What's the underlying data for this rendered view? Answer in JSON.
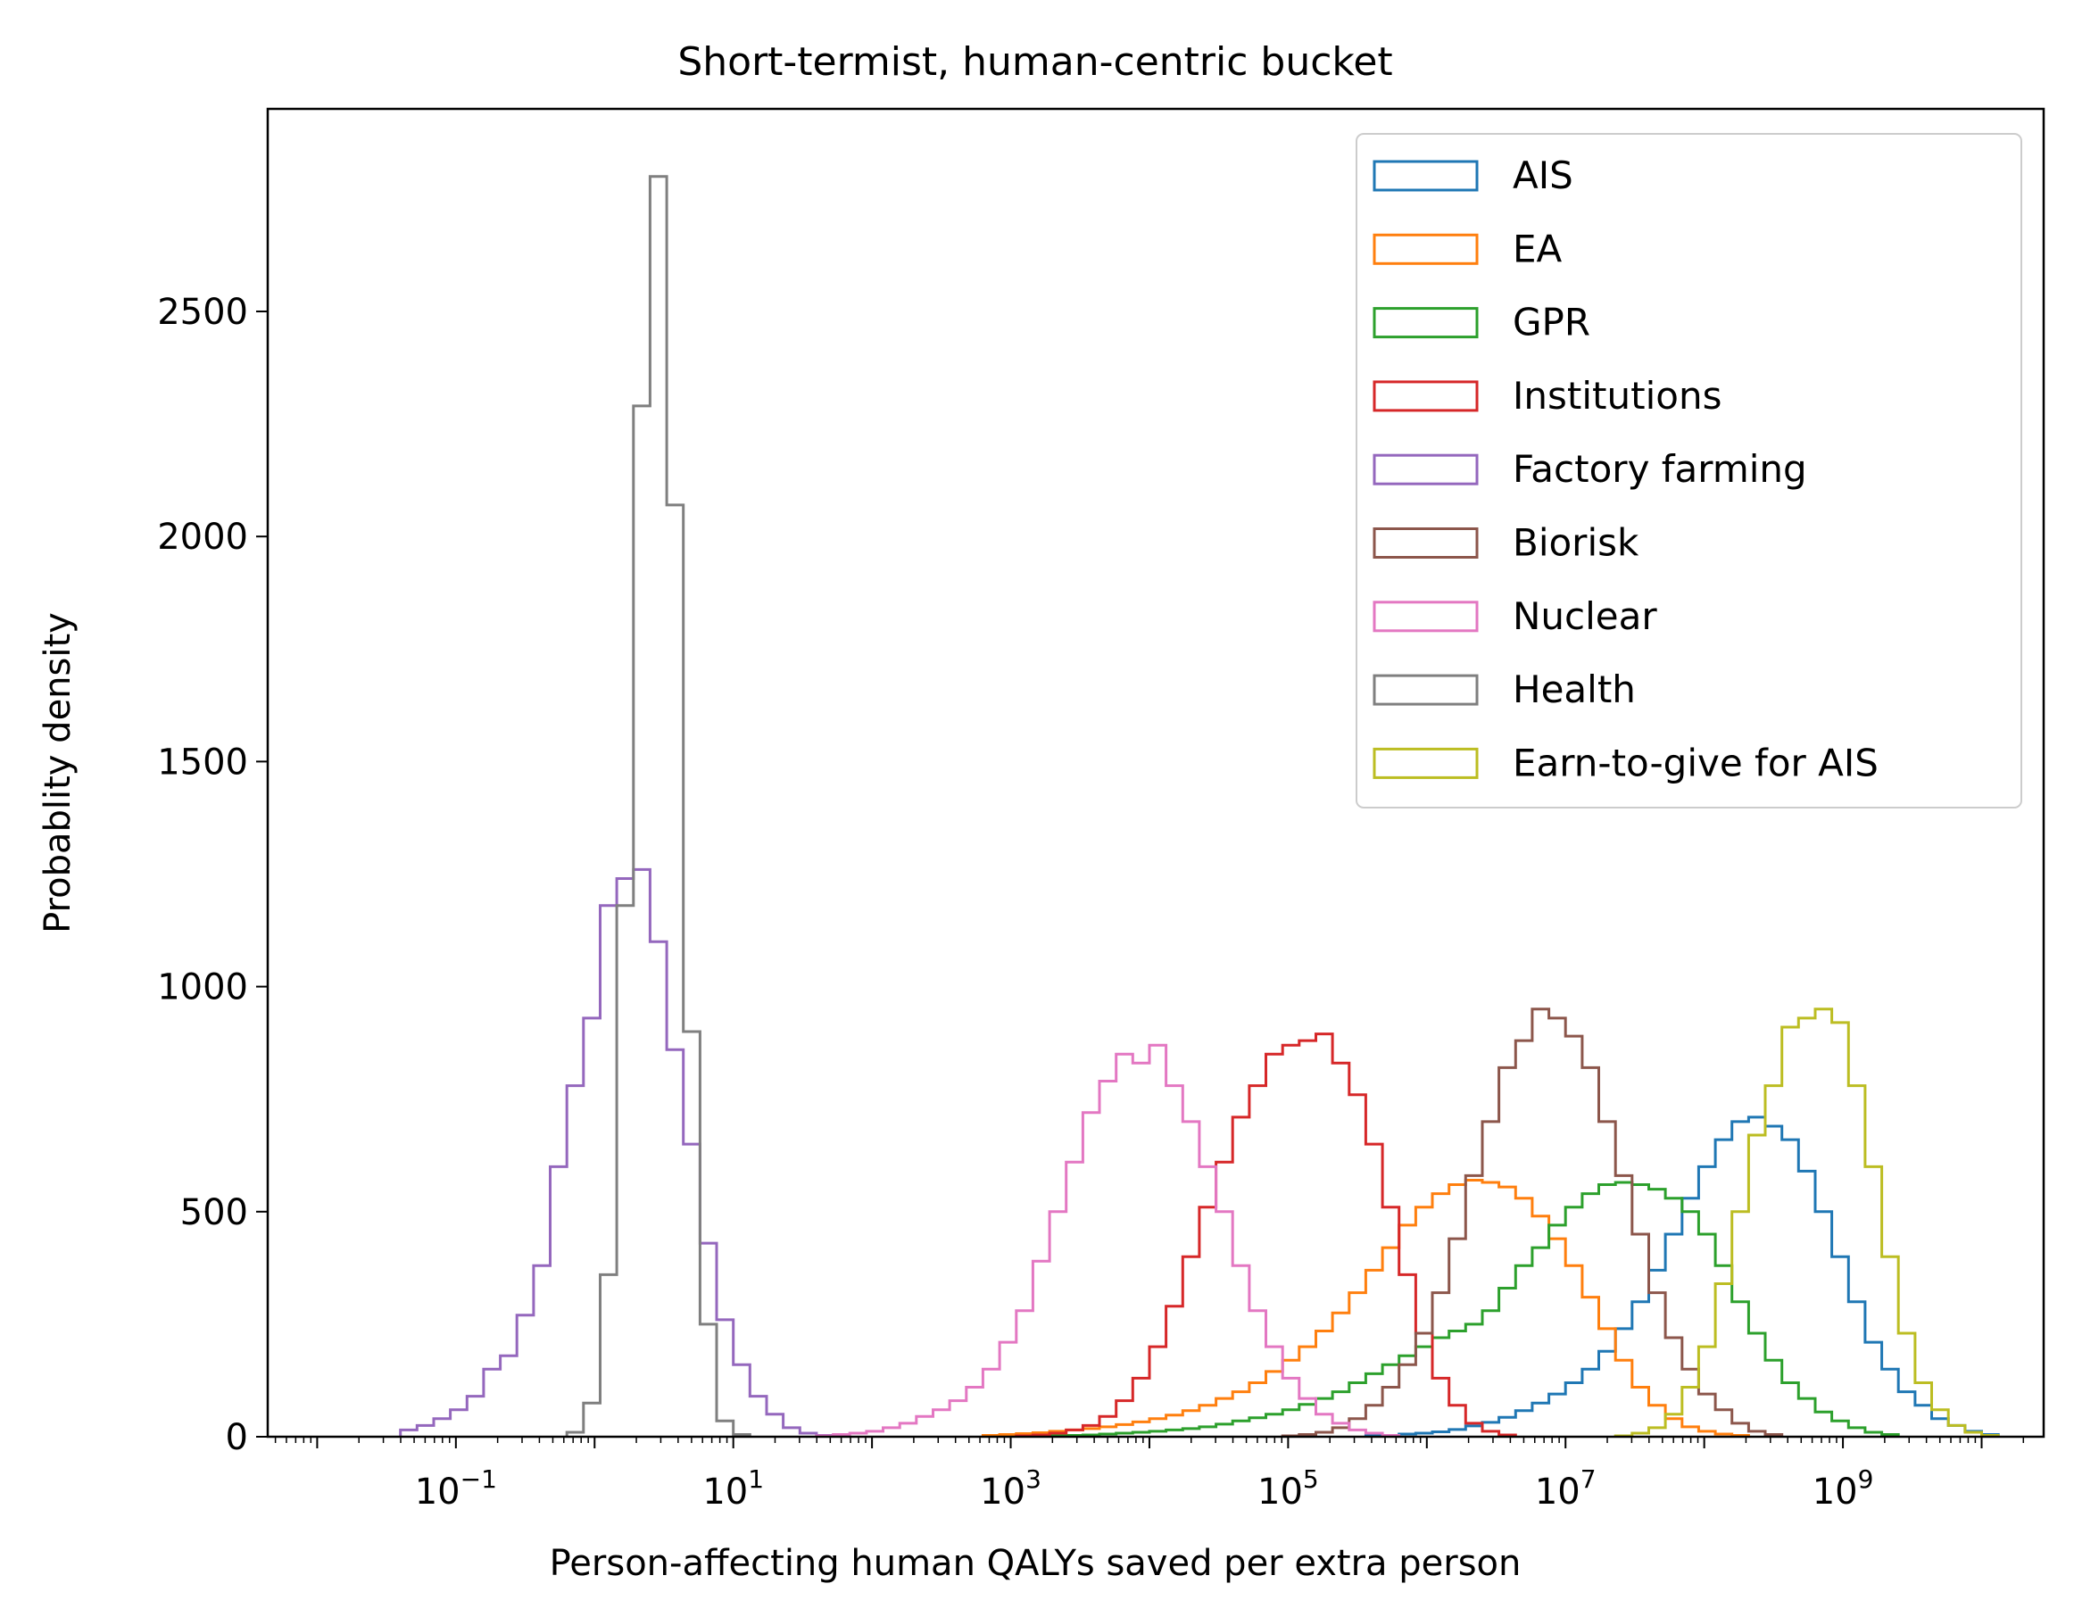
{
  "chart_data": {
    "type": "histogram",
    "histtype": "step",
    "title": "Short-termist, human-centric bucket",
    "xlabel": "Person-affecting human QALYs saved per extra person",
    "ylabel": "Probablity density",
    "xscale": "log",
    "xlim": [
      0.0044,
      28000000000
    ],
    "ylim": [
      0,
      2950
    ],
    "xticks": [
      {
        "value": 0.1,
        "base": "10",
        "exp": "−1"
      },
      {
        "value": 10,
        "base": "10",
        "exp": "1"
      },
      {
        "value": 1000,
        "base": "10",
        "exp": "3"
      },
      {
        "value": 100000,
        "base": "10",
        "exp": "5"
      },
      {
        "value": 10000000,
        "base": "10",
        "exp": "7"
      },
      {
        "value": 1000000000,
        "base": "10",
        "exp": "9"
      }
    ],
    "yticks": [
      0,
      500,
      1000,
      1500,
      2000,
      2500
    ],
    "legend_position": "top-right",
    "grid": false,
    "bin_edges": {
      "log10_start": -2.0,
      "log10_step": 0.12,
      "count": 101
    },
    "series": [
      {
        "name": "AIS",
        "color": "#1f77b4",
        "values": [
          0,
          0,
          0,
          0,
          0,
          0,
          0,
          0,
          0,
          0,
          0,
          0,
          0,
          0,
          0,
          0,
          0,
          0,
          0,
          0,
          0,
          0,
          0,
          0,
          0,
          0,
          0,
          0,
          0,
          0,
          0,
          0,
          0,
          0,
          0,
          0,
          0,
          0,
          0,
          0,
          0,
          0,
          0,
          0,
          0,
          0,
          0,
          0,
          0,
          0,
          0,
          0,
          0,
          0,
          0,
          0,
          0,
          0,
          0,
          0,
          0,
          0,
          0,
          2,
          3,
          6,
          8,
          11,
          16,
          24,
          32,
          43,
          58,
          75,
          95,
          120,
          150,
          190,
          240,
          300,
          370,
          450,
          530,
          600,
          660,
          700,
          710,
          690,
          660,
          590,
          500,
          400,
          300,
          210,
          150,
          100,
          70,
          40,
          25,
          12,
          5
        ]
      },
      {
        "name": "EA",
        "color": "#ff7f0e",
        "values": [
          0,
          0,
          0,
          0,
          0,
          0,
          0,
          0,
          0,
          0,
          0,
          0,
          0,
          0,
          0,
          0,
          0,
          0,
          0,
          0,
          0,
          0,
          0,
          0,
          0,
          0,
          0,
          0,
          0,
          0,
          0,
          0,
          0,
          0,
          0,
          0,
          0,
          0,
          0,
          0,
          3,
          5,
          7,
          9,
          12,
          15,
          18,
          22,
          27,
          33,
          40,
          48,
          58,
          70,
          85,
          100,
          120,
          145,
          170,
          200,
          235,
          275,
          320,
          370,
          420,
          470,
          510,
          540,
          560,
          570,
          565,
          555,
          530,
          490,
          440,
          380,
          310,
          240,
          170,
          110,
          70,
          40,
          22,
          12,
          6,
          3,
          0,
          0,
          0,
          0,
          0,
          0,
          0,
          0,
          0,
          0,
          0,
          0,
          0,
          0,
          0
        ]
      },
      {
        "name": "GPR",
        "color": "#2ca02c",
        "values": [
          0,
          0,
          0,
          0,
          0,
          0,
          0,
          0,
          0,
          0,
          0,
          0,
          0,
          0,
          0,
          0,
          0,
          0,
          0,
          0,
          0,
          0,
          0,
          0,
          0,
          0,
          0,
          0,
          0,
          0,
          0,
          0,
          0,
          0,
          0,
          0,
          0,
          0,
          0,
          0,
          0,
          0,
          0,
          0,
          2,
          3,
          4,
          6,
          8,
          10,
          12,
          15,
          18,
          22,
          28,
          35,
          42,
          50,
          60,
          72,
          85,
          100,
          120,
          140,
          160,
          180,
          200,
          220,
          235,
          250,
          280,
          330,
          380,
          420,
          470,
          510,
          540,
          560,
          565,
          560,
          550,
          530,
          500,
          450,
          380,
          300,
          230,
          170,
          120,
          85,
          55,
          35,
          20,
          10,
          5,
          0,
          0,
          0,
          0,
          0,
          0
        ]
      },
      {
        "name": "Institutions",
        "color": "#d62728",
        "values": [
          0,
          0,
          0,
          0,
          0,
          0,
          0,
          0,
          0,
          0,
          0,
          0,
          0,
          0,
          0,
          0,
          0,
          0,
          0,
          0,
          0,
          0,
          0,
          0,
          0,
          0,
          0,
          0,
          0,
          0,
          0,
          0,
          0,
          0,
          0,
          0,
          0,
          0,
          0,
          0,
          0,
          0,
          2,
          4,
          8,
          15,
          25,
          45,
          80,
          130,
          200,
          290,
          400,
          510,
          610,
          710,
          780,
          850,
          870,
          880,
          895,
          830,
          760,
          650,
          510,
          360,
          230,
          130,
          70,
          30,
          12,
          4,
          0,
          0,
          0,
          0,
          0,
          0,
          0,
          0,
          0,
          0,
          0,
          0,
          0,
          0,
          0,
          0,
          0,
          0,
          0,
          0,
          0,
          0,
          0,
          0,
          0,
          0,
          0,
          0,
          0
        ]
      },
      {
        "name": "Factory farming",
        "color": "#9467bd",
        "values": [
          0,
          0,
          0,
          0,
          0,
          15,
          25,
          40,
          60,
          90,
          150,
          180,
          270,
          380,
          600,
          780,
          930,
          1180,
          1240,
          1260,
          1100,
          860,
          650,
          430,
          260,
          160,
          90,
          50,
          20,
          8,
          3,
          0,
          0,
          0,
          0,
          0,
          0,
          0,
          0,
          0,
          0,
          0,
          0,
          0,
          0,
          0,
          0,
          0,
          0,
          0,
          0,
          0,
          0,
          0,
          0,
          0,
          0,
          0,
          0,
          0,
          0,
          0,
          0,
          0,
          0,
          0,
          0,
          0,
          0,
          0,
          0,
          0,
          0,
          0,
          0,
          0,
          0,
          0,
          0,
          0,
          0,
          0,
          0,
          0,
          0,
          0,
          0,
          0,
          0,
          0,
          0,
          0,
          0,
          0,
          0,
          0,
          0,
          0,
          0,
          0,
          0
        ]
      },
      {
        "name": "Biorisk",
        "color": "#8c564b",
        "values": [
          0,
          0,
          0,
          0,
          0,
          0,
          0,
          0,
          0,
          0,
          0,
          0,
          0,
          0,
          0,
          0,
          0,
          0,
          0,
          0,
          0,
          0,
          0,
          0,
          0,
          0,
          0,
          0,
          0,
          0,
          0,
          0,
          0,
          0,
          0,
          0,
          0,
          0,
          0,
          0,
          0,
          0,
          0,
          0,
          0,
          0,
          0,
          0,
          0,
          0,
          0,
          0,
          0,
          0,
          0,
          0,
          0,
          0,
          2,
          5,
          10,
          20,
          40,
          70,
          110,
          160,
          230,
          320,
          440,
          580,
          700,
          820,
          880,
          950,
          930,
          890,
          820,
          700,
          580,
          450,
          320,
          220,
          150,
          95,
          60,
          30,
          12,
          5,
          0,
          0,
          0,
          0,
          0,
          0,
          0,
          0,
          0,
          0,
          0,
          0,
          0
        ]
      },
      {
        "name": "Nuclear",
        "color": "#e377c2",
        "values": [
          0,
          0,
          0,
          0,
          0,
          0,
          0,
          0,
          0,
          0,
          0,
          0,
          0,
          0,
          0,
          0,
          0,
          0,
          0,
          0,
          0,
          0,
          0,
          0,
          0,
          0,
          0,
          0,
          0,
          0,
          2,
          5,
          8,
          12,
          20,
          30,
          45,
          60,
          80,
          110,
          150,
          210,
          280,
          390,
          500,
          610,
          720,
          790,
          850,
          830,
          870,
          780,
          700,
          600,
          500,
          380,
          280,
          200,
          130,
          85,
          50,
          30,
          15,
          8,
          3,
          0,
          0,
          0,
          0,
          0,
          0,
          0,
          0,
          0,
          0,
          0,
          0,
          0,
          0,
          0,
          0,
          0,
          0,
          0,
          0,
          0,
          0,
          0,
          0,
          0,
          0,
          0,
          0,
          0,
          0,
          0,
          0,
          0,
          0,
          0,
          0
        ]
      },
      {
        "name": "Health",
        "color": "#7f7f7f",
        "values": [
          0,
          0,
          0,
          0,
          0,
          0,
          0,
          0,
          0,
          0,
          0,
          0,
          0,
          0,
          0,
          10,
          75,
          360,
          1180,
          2290,
          2800,
          2070,
          900,
          250,
          35,
          5,
          0,
          0,
          0,
          0,
          0,
          0,
          0,
          0,
          0,
          0,
          0,
          0,
          0,
          0,
          0,
          0,
          0,
          0,
          0,
          0,
          0,
          0,
          0,
          0,
          0,
          0,
          0,
          0,
          0,
          0,
          0,
          0,
          0,
          0,
          0,
          0,
          0,
          0,
          0,
          0,
          0,
          0,
          0,
          0,
          0,
          0,
          0,
          0,
          0,
          0,
          0,
          0,
          0,
          0,
          0,
          0,
          0,
          0,
          0,
          0,
          0,
          0,
          0,
          0,
          0,
          0,
          0,
          0,
          0,
          0,
          0,
          0,
          0,
          0,
          0
        ]
      },
      {
        "name": "Earn-to-give for AIS",
        "color": "#bcbd22",
        "values": [
          0,
          0,
          0,
          0,
          0,
          0,
          0,
          0,
          0,
          0,
          0,
          0,
          0,
          0,
          0,
          0,
          0,
          0,
          0,
          0,
          0,
          0,
          0,
          0,
          0,
          0,
          0,
          0,
          0,
          0,
          0,
          0,
          0,
          0,
          0,
          0,
          0,
          0,
          0,
          0,
          0,
          0,
          0,
          0,
          0,
          0,
          0,
          0,
          0,
          0,
          0,
          0,
          0,
          0,
          0,
          0,
          0,
          0,
          0,
          0,
          0,
          0,
          0,
          0,
          0,
          0,
          0,
          0,
          0,
          0,
          0,
          0,
          0,
          0,
          0,
          0,
          0,
          0,
          2,
          8,
          20,
          50,
          110,
          200,
          340,
          500,
          670,
          780,
          910,
          930,
          950,
          920,
          780,
          600,
          400,
          230,
          120,
          60,
          25,
          10,
          3
        ]
      }
    ]
  }
}
